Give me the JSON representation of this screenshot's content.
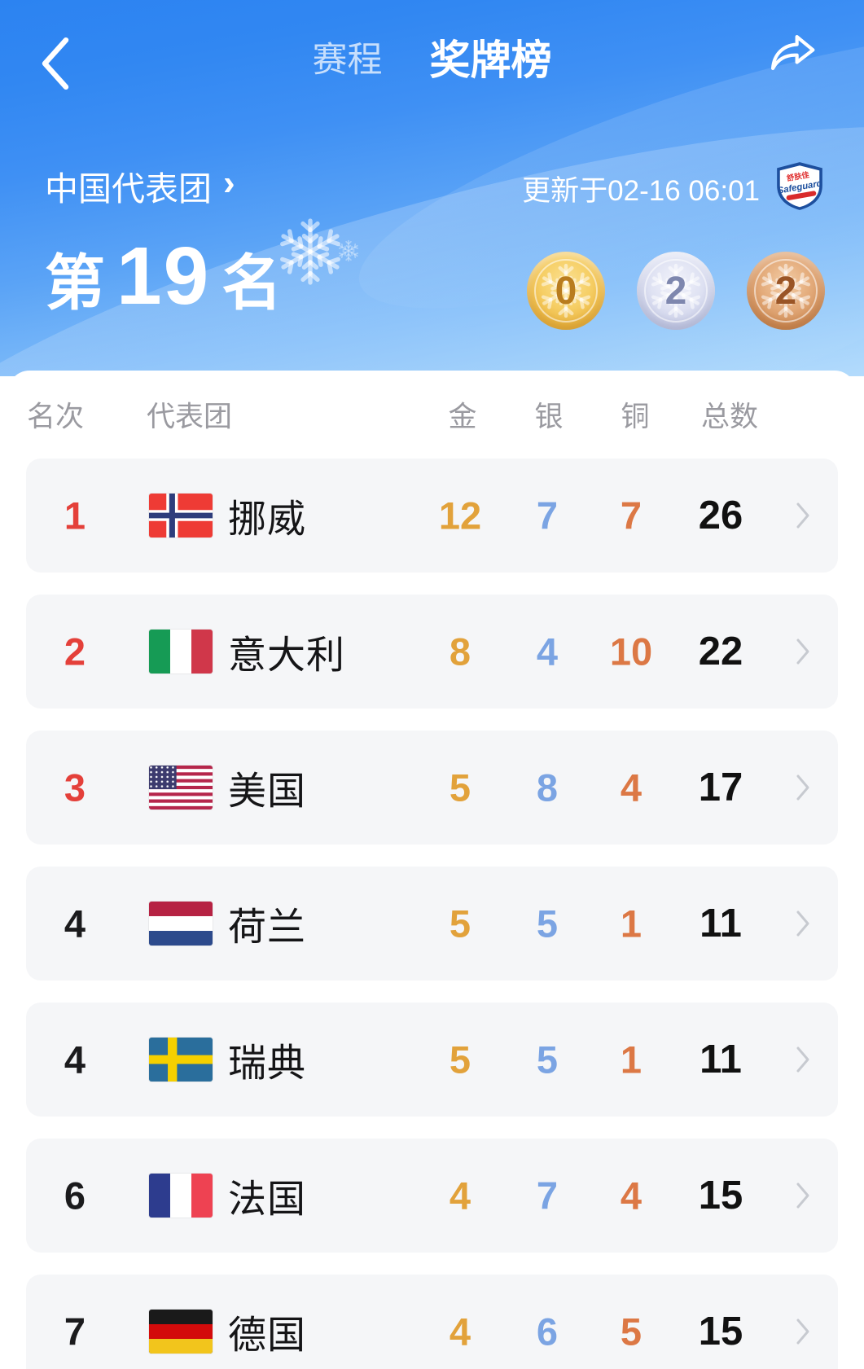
{
  "header": {
    "back_icon": "chevron-left",
    "tabs": [
      {
        "label": "赛程",
        "active": false
      },
      {
        "label": "奖牌榜",
        "active": true
      }
    ],
    "share_icon": "share-forward-arrow"
  },
  "hero": {
    "team_link": "中国代表团",
    "team_link_arrow": "›",
    "updated": "更新于02-16 06:01",
    "sponsor": {
      "label_cn": "舒肤佳",
      "label_en": "Safeguard"
    },
    "rank_prefix": "第",
    "rank_number": "19",
    "rank_suffix": "名",
    "medals": [
      {
        "type": "gold",
        "count": "0"
      },
      {
        "type": "silver",
        "count": "2"
      },
      {
        "type": "bronze",
        "count": "2"
      }
    ]
  },
  "table": {
    "columns": [
      "名次",
      "代表团",
      "金",
      "银",
      "铜",
      "总数"
    ],
    "rows": [
      {
        "rank": "1",
        "top3": true,
        "flag": "norway",
        "country": "挪威",
        "gold": "12",
        "silver": "7",
        "bronze": "7",
        "total": "26"
      },
      {
        "rank": "2",
        "top3": true,
        "flag": "italy",
        "country": "意大利",
        "gold": "8",
        "silver": "4",
        "bronze": "10",
        "total": "22"
      },
      {
        "rank": "3",
        "top3": true,
        "flag": "usa",
        "country": "美国",
        "gold": "5",
        "silver": "8",
        "bronze": "4",
        "total": "17"
      },
      {
        "rank": "4",
        "top3": false,
        "flag": "netherlands",
        "country": "荷兰",
        "gold": "5",
        "silver": "5",
        "bronze": "1",
        "total": "11"
      },
      {
        "rank": "4",
        "top3": false,
        "flag": "sweden",
        "country": "瑞典",
        "gold": "5",
        "silver": "5",
        "bronze": "1",
        "total": "11"
      },
      {
        "rank": "6",
        "top3": false,
        "flag": "france",
        "country": "法国",
        "gold": "4",
        "silver": "7",
        "bronze": "4",
        "total": "15"
      },
      {
        "rank": "7",
        "top3": false,
        "flag": "germany",
        "country": "德国",
        "gold": "4",
        "silver": "6",
        "bronze": "5",
        "total": "15"
      }
    ]
  },
  "colors": {
    "header_blue": "#2e86f2",
    "hero_light_blue": "#a5d3fb",
    "gold_text": "#e2a23b",
    "silver_text": "#7ba4e3",
    "bronze_text": "#dc7845",
    "rank_red": "#e4403a",
    "row_bg": "#f5f6f8"
  }
}
